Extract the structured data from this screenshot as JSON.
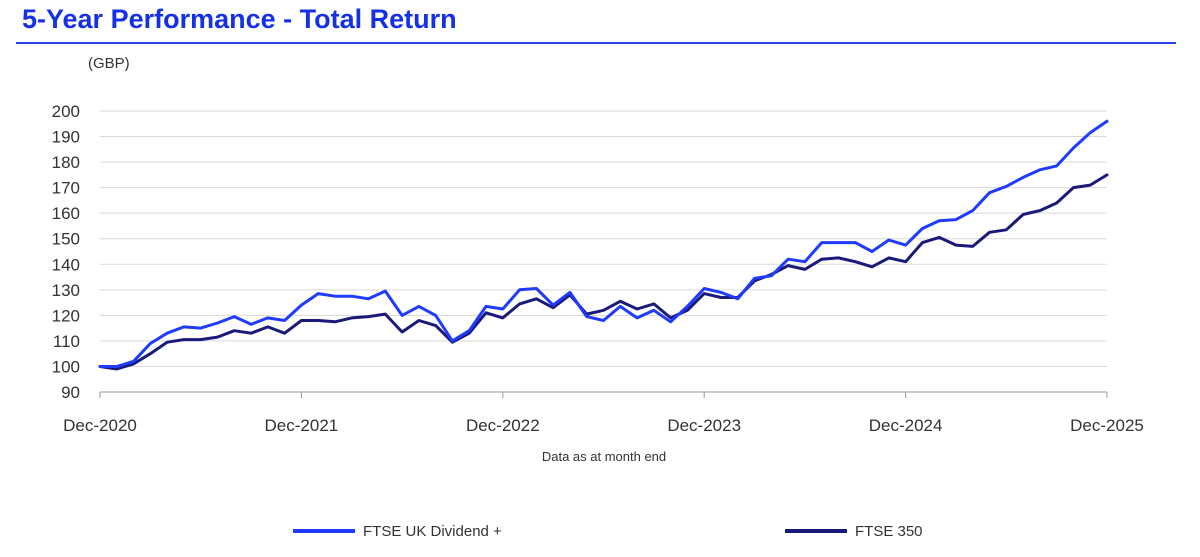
{
  "header": {
    "title": "5-Year Performance - Total Return"
  },
  "chart_data": {
    "type": "line",
    "title": "5-Year Performance - Total Return",
    "ylabel": "(GBP)",
    "xlabel": "Data as at month end",
    "ylim": [
      90,
      200
    ],
    "yticks": [
      90,
      100,
      110,
      120,
      130,
      140,
      150,
      160,
      170,
      180,
      190,
      200
    ],
    "xticks": [
      "Dec-2020",
      "Dec-2021",
      "Dec-2022",
      "Dec-2023",
      "Dec-2024",
      "Dec-2025"
    ],
    "grid": true,
    "legend_position": "bottom",
    "x_start": "Dec-2020",
    "x_frequency": "monthly",
    "series": [
      {
        "name": "FTSE UK Dividend +",
        "color": "#1f3bff",
        "values": [
          100,
          100,
          102,
          109,
          113,
          115.5,
          115,
          117,
          119.5,
          116.5,
          119,
          118,
          124,
          128.5,
          127.5,
          127.5,
          126.5,
          129.5,
          120,
          123.5,
          120,
          110,
          114,
          123.5,
          122.5,
          130,
          130.5,
          124,
          129,
          119.5,
          118,
          123.5,
          119,
          122,
          117.5,
          123.5,
          130.5,
          129,
          126.5,
          134.5,
          135.5,
          142,
          141,
          148.5,
          148.5,
          148.5,
          145,
          149.5,
          147.5,
          154,
          157,
          157.5,
          161,
          168,
          170.5,
          174,
          177,
          178.5,
          185.5,
          191.5,
          196
        ]
      },
      {
        "name": "FTSE 350",
        "color": "#1a1a7a",
        "values": [
          100,
          99,
          101,
          105,
          109.5,
          110.5,
          110.5,
          111.5,
          114,
          113,
          115.5,
          113,
          118,
          118,
          117.5,
          119,
          119.5,
          120.5,
          113.5,
          118,
          116,
          109.5,
          113,
          121,
          119,
          124.5,
          126.5,
          123,
          128,
          120.5,
          122,
          125.5,
          122.5,
          124.5,
          119,
          122,
          128.5,
          127,
          127,
          133.5,
          136,
          139.5,
          138,
          142,
          142.5,
          141,
          139,
          142.5,
          141,
          148.5,
          150.5,
          147.5,
          147,
          152.5,
          153.5,
          159.5,
          161,
          164,
          170,
          171,
          175
        ]
      }
    ]
  }
}
